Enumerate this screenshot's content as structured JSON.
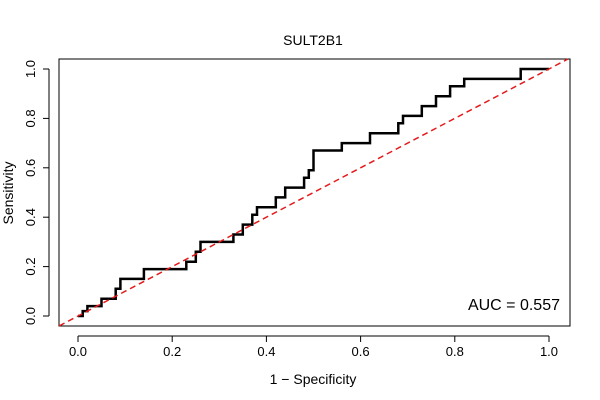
{
  "chart_data": {
    "type": "line",
    "title": "SULT2B1",
    "xlabel": "1 − Specificity",
    "ylabel": "Sensitivity",
    "xlim": [
      0,
      1
    ],
    "ylim": [
      0,
      1
    ],
    "x_ticks": [
      0.0,
      0.2,
      0.4,
      0.6,
      0.8,
      1.0
    ],
    "x_tick_labels": [
      "0.0",
      "0.2",
      "0.4",
      "0.6",
      "0.8",
      "1.0"
    ],
    "y_ticks": [
      0.0,
      0.2,
      0.4,
      0.6,
      0.8,
      1.0
    ],
    "y_tick_labels": [
      "0.0",
      "0.2",
      "0.4",
      "0.6",
      "0.8",
      "1.0"
    ],
    "grid": false,
    "annotation": "AUC = 0.557",
    "series": [
      {
        "color": "#000000",
        "style": "solid",
        "points": [
          [
            0.0,
            0.0
          ],
          [
            0.01,
            0.0
          ],
          [
            0.01,
            0.02
          ],
          [
            0.02,
            0.02
          ],
          [
            0.02,
            0.04
          ],
          [
            0.05,
            0.04
          ],
          [
            0.05,
            0.07
          ],
          [
            0.08,
            0.07
          ],
          [
            0.08,
            0.11
          ],
          [
            0.09,
            0.11
          ],
          [
            0.09,
            0.15
          ],
          [
            0.14,
            0.15
          ],
          [
            0.14,
            0.19
          ],
          [
            0.23,
            0.19
          ],
          [
            0.23,
            0.22
          ],
          [
            0.25,
            0.22
          ],
          [
            0.25,
            0.26
          ],
          [
            0.26,
            0.26
          ],
          [
            0.26,
            0.3
          ],
          [
            0.33,
            0.3
          ],
          [
            0.33,
            0.33
          ],
          [
            0.35,
            0.33
          ],
          [
            0.35,
            0.37
          ],
          [
            0.37,
            0.37
          ],
          [
            0.37,
            0.41
          ],
          [
            0.38,
            0.41
          ],
          [
            0.38,
            0.44
          ],
          [
            0.42,
            0.44
          ],
          [
            0.42,
            0.48
          ],
          [
            0.44,
            0.48
          ],
          [
            0.44,
            0.52
          ],
          [
            0.48,
            0.52
          ],
          [
            0.48,
            0.56
          ],
          [
            0.49,
            0.56
          ],
          [
            0.49,
            0.59
          ],
          [
            0.5,
            0.59
          ],
          [
            0.5,
            0.67
          ],
          [
            0.56,
            0.67
          ],
          [
            0.56,
            0.7
          ],
          [
            0.62,
            0.7
          ],
          [
            0.62,
            0.74
          ],
          [
            0.68,
            0.74
          ],
          [
            0.68,
            0.78
          ],
          [
            0.69,
            0.78
          ],
          [
            0.69,
            0.81
          ],
          [
            0.73,
            0.81
          ],
          [
            0.73,
            0.85
          ],
          [
            0.76,
            0.85
          ],
          [
            0.76,
            0.89
          ],
          [
            0.79,
            0.89
          ],
          [
            0.79,
            0.93
          ],
          [
            0.82,
            0.93
          ],
          [
            0.82,
            0.96
          ],
          [
            0.94,
            0.96
          ],
          [
            0.94,
            1.0
          ],
          [
            1.0,
            1.0
          ]
        ]
      },
      {
        "color": "#e41a1c",
        "style": "dashed",
        "points": [
          [
            -0.04,
            -0.04
          ],
          [
            1.04,
            1.04
          ]
        ]
      }
    ]
  }
}
